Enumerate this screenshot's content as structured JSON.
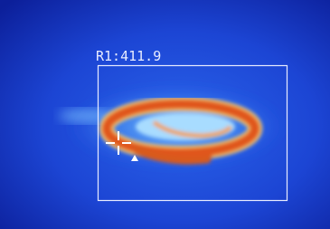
{
  "overlay": {
    "label": "R1:411.9"
  }
}
